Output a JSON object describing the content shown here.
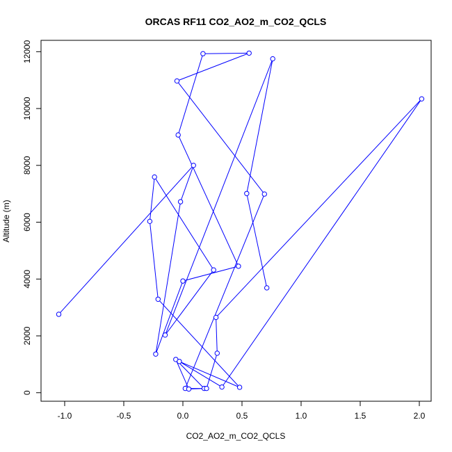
{
  "chart_data": {
    "type": "line",
    "title": "ORCAS RF11 CO2_AO2_m_CO2_QCLS",
    "xlabel": "CO2_AO2_m_CO2_QCLS",
    "ylabel": "Altitude (m)",
    "xlim": [
      -1.2,
      2.1
    ],
    "ylim": [
      -300,
      12400
    ],
    "xticks": [
      -1.0,
      -0.5,
      0.0,
      0.5,
      1.0,
      1.5,
      2.0
    ],
    "xtick_labels": [
      "-1.0",
      "-0.5",
      "0.0",
      "0.5",
      "1.0",
      "1.5",
      "2.0"
    ],
    "yticks": [
      0,
      2000,
      4000,
      6000,
      8000,
      10000,
      12000
    ],
    "ytick_labels": [
      "0",
      "2000",
      "4000",
      "6000",
      "8000",
      "10000",
      "12000"
    ],
    "grid": false,
    "legend": "none",
    "series_color": "#0000ff",
    "markers": "open-circle",
    "points": [
      {
        "x": -1.05,
        "y": 2760
      },
      {
        "x": 0.09,
        "y": 8000
      },
      {
        "x": -0.02,
        "y": 6720
      },
      {
        "x": -0.23,
        "y": 1360
      },
      {
        "x": 0.0,
        "y": 3930
      },
      {
        "x": 0.47,
        "y": 4450
      },
      {
        "x": -0.04,
        "y": 9070
      },
      {
        "x": 0.17,
        "y": 11930
      },
      {
        "x": 0.56,
        "y": 11950
      },
      {
        "x": -0.05,
        "y": 10970
      },
      {
        "x": 0.69,
        "y": 6990
      },
      {
        "x": 0.02,
        "y": 150
      },
      {
        "x": 0.18,
        "y": 150
      },
      {
        "x": -0.06,
        "y": 1170
      },
      {
        "x": 0.05,
        "y": 130
      },
      {
        "x": 0.2,
        "y": 150
      },
      {
        "x": 0.29,
        "y": 1390
      },
      {
        "x": 0.28,
        "y": 2650
      },
      {
        "x": 2.02,
        "y": 10340
      },
      {
        "x": 0.33,
        "y": 200
      },
      {
        "x": -0.03,
        "y": 1100
      },
      {
        "x": 0.48,
        "y": 190
      },
      {
        "x": -0.21,
        "y": 3290
      },
      {
        "x": -0.28,
        "y": 6030
      },
      {
        "x": -0.24,
        "y": 7590
      },
      {
        "x": 0.26,
        "y": 4320
      },
      {
        "x": -0.15,
        "y": 2030
      },
      {
        "x": 0.76,
        "y": 11750
      },
      {
        "x": 0.54,
        "y": 7010
      },
      {
        "x": 0.71,
        "y": 3690
      }
    ]
  }
}
